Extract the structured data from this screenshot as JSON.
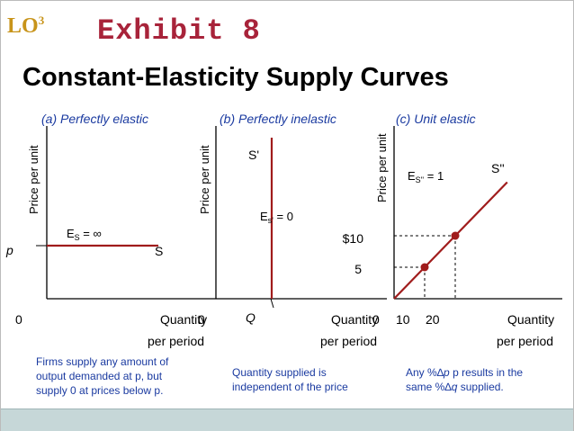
{
  "header": {
    "lo_label": "LO",
    "lo_number": "3",
    "exhibit": "Exhibit 8",
    "title": "Constant-Elasticity Supply Curves"
  },
  "colors": {
    "curve": "#a01c1c",
    "panel_title": "#1a3aa0",
    "caption": "#1a3aa0",
    "exhibit": "#a8233a",
    "lo": "#c8941a",
    "footer": "#c6d7d8"
  },
  "chart_data": [
    {
      "type": "line",
      "panel_title": "(a) Perfectly elastic",
      "ylabel": "Price per unit",
      "xlabel": [
        "Quantity",
        "per period"
      ],
      "origin_label": "0",
      "y_marker_label": "p",
      "curve_label": "S",
      "elasticity_label": {
        "E": "E",
        "sub": "S",
        "rest": " = ∞"
      },
      "caption": [
        "Firms supply any amount of",
        "output demanded at p, but",
        "supply 0 at prices below p."
      ],
      "series": [
        {
          "name": "S",
          "x": [
            0,
            1
          ],
          "y": [
            0.5,
            0.5
          ]
        }
      ]
    },
    {
      "type": "line",
      "panel_title": "(b) Perfectly inelastic",
      "ylabel": "Price per unit",
      "xlabel": [
        "Quantity",
        "per period"
      ],
      "origin_label": "0",
      "x_marker_label": "Q",
      "curve_label": "S'",
      "elasticity_label": {
        "E": "E",
        "sub": "s'",
        "rest": " = 0"
      },
      "caption": [
        "Quantity supplied is",
        "independent of the price"
      ],
      "series": [
        {
          "name": "S'",
          "x": [
            0.4,
            0.4
          ],
          "y": [
            0,
            1
          ]
        }
      ]
    },
    {
      "type": "line",
      "panel_title": "(c) Unit elastic",
      "ylabel": "Price per unit",
      "xlabel": [
        "Quantity",
        "per period"
      ],
      "origin_label": "0",
      "x_ticks": [
        "10",
        "20"
      ],
      "y_ticks": [
        "5",
        "$10"
      ],
      "curve_label": "S''",
      "elasticity_label": {
        "E": "E",
        "sub": "S''",
        "rest": " = 1"
      },
      "caption_prefix": "Any %",
      "caption_line1_mid": "p results in the",
      "caption_line2_pre": "same %",
      "caption_line2_post": " supplied.",
      "caption_var_p": "p",
      "caption_var_q": "q",
      "delta_symbol": "∆",
      "series": [
        {
          "name": "S''",
          "x": [
            0,
            10,
            20,
            37
          ],
          "y": [
            0,
            5,
            10,
            18.5
          ]
        }
      ],
      "points": [
        {
          "x": 10,
          "y": 5
        },
        {
          "x": 20,
          "y": 10
        }
      ]
    }
  ]
}
